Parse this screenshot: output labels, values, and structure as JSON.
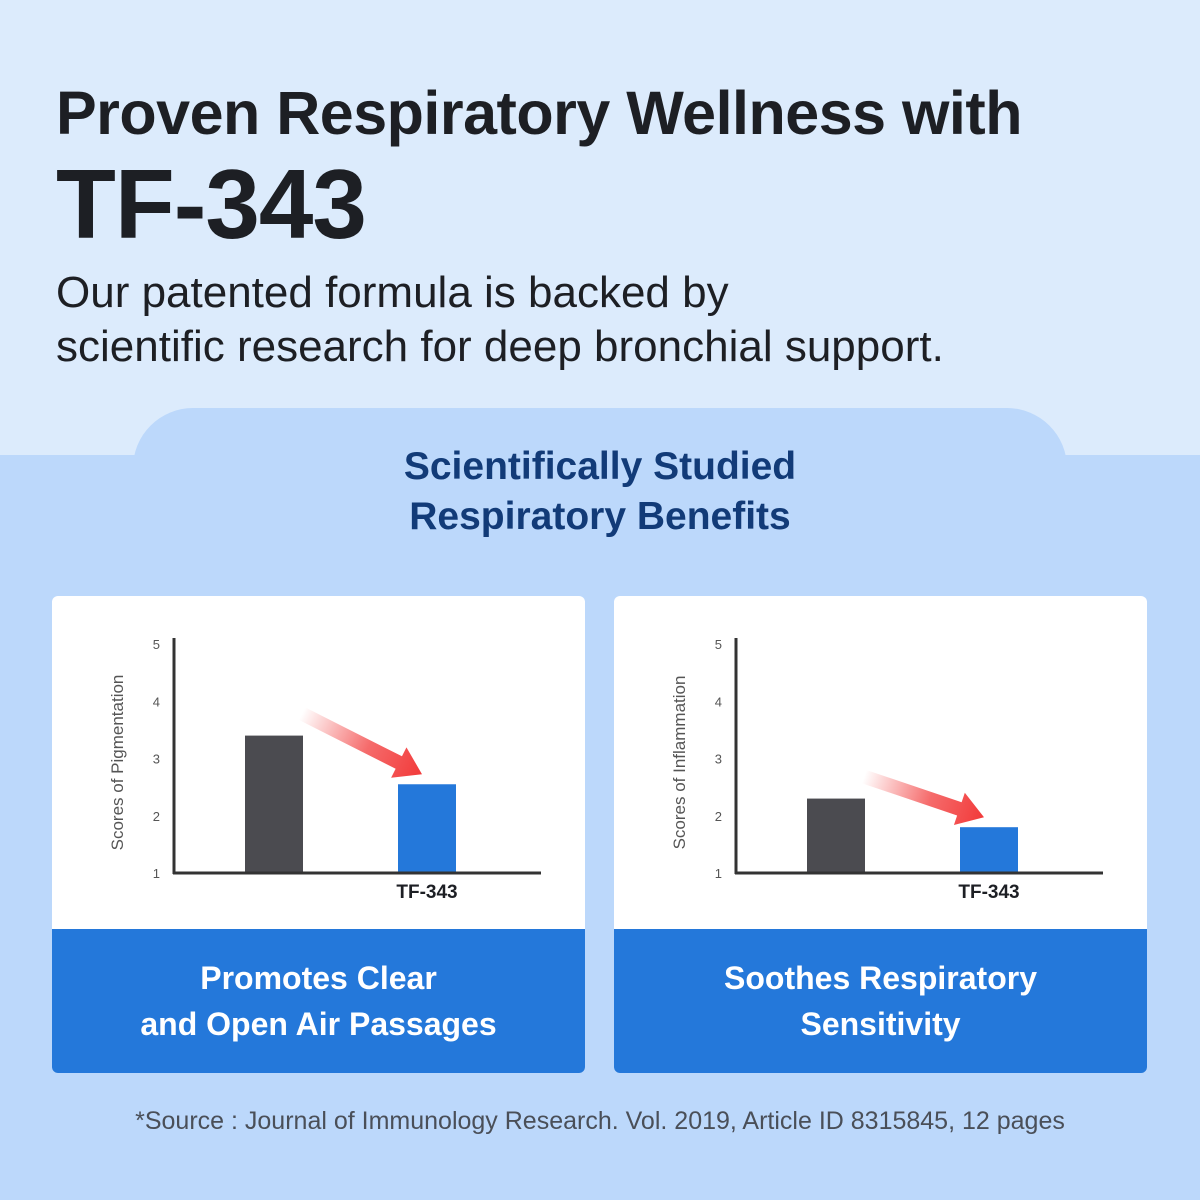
{
  "header": {
    "title": "Proven Respiratory Wellness with",
    "brand": "TF-343",
    "subtitle_line1": "Our patented formula is backed by",
    "subtitle_line2": "scientific research for deep bronchial support."
  },
  "section": {
    "title_line1": "Scientifically Studied",
    "title_line2": "Respiratory Benefits"
  },
  "cards": [
    {
      "caption_line1": "Promotes Clear",
      "caption_line2": "and Open Air Passages"
    },
    {
      "caption_line1": "Soothes Respiratory",
      "caption_line2": "Sensitivity"
    }
  ],
  "footer": {
    "source": "*Source : Journal of Immunology Research. Vol. 2019, Article ID 8315845, 12 pages"
  },
  "colors": {
    "control_bar": "#4b4b50",
    "tf343_bar": "#2478da",
    "arrow": "#f23a3a",
    "axis": "#333333"
  },
  "chart_data": [
    {
      "type": "bar",
      "ylabel": "Scores of Pigmentation",
      "ylim": [
        1,
        5
      ],
      "yticks": [
        "1",
        "2",
        "3",
        "4",
        "5"
      ],
      "categories": [
        "",
        "TF-343"
      ],
      "values": [
        3.4,
        2.55
      ],
      "arrow": "decrease"
    },
    {
      "type": "bar",
      "ylabel": "Scores of Inflammation",
      "ylim": [
        1,
        5
      ],
      "yticks": [
        "1",
        "2",
        "3",
        "4",
        "5"
      ],
      "categories": [
        "",
        "TF-343"
      ],
      "values": [
        2.3,
        1.8
      ],
      "arrow": "decrease"
    }
  ]
}
